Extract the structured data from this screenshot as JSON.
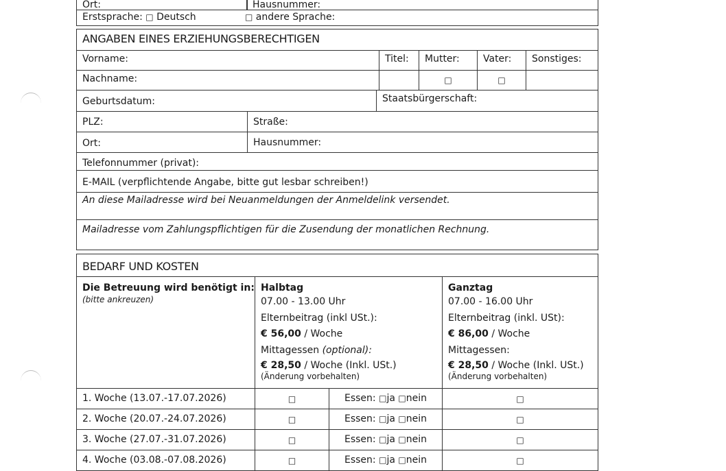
{
  "top_row": {
    "ort": "Ort:",
    "hausnummer": "Hausnummer:"
  },
  "erstsprache": {
    "label": "Erstsprache:",
    "option1": "Deutsch",
    "option2": "andere Sprache:"
  },
  "guardian": {
    "header": "ANGABEN EINES ERZIEHUNGSBERECHTIGEN",
    "vorname": "Vorname:",
    "titel": "Titel:",
    "mutter": "Mutter:",
    "vater": "Vater:",
    "sonstiges": "Sonstiges:",
    "nachname": "Nachname:",
    "geburtsdatum": "Geburtsdatum:",
    "staatsbuergerschaft": "Staatsbürgerschaft:",
    "plz": "PLZ:",
    "strasse": "Straße:",
    "ort": "Ort:",
    "hausnummer": "Hausnummer:",
    "telefon": "Telefonnummer (privat):",
    "email": "E-MAIL (verpflichtende Angabe, bitte gut lesbar schreiben!)",
    "email_note": "An diese Mailadresse wird bei Neuanmeldungen der Anmeldelink versendet.",
    "billing_note": "Mailadresse vom Zahlungspflichtigen für die Zusendung der monatlichen Rechnung."
  },
  "costs": {
    "header": "BEDARF UND KOSTEN",
    "intro": "Die Betreuung wird benötigt in:",
    "intro_note": "(bitte ankreuzen)",
    "halbtag": {
      "title": "Halbtag",
      "hours": "07.00 - 13.00 Uhr",
      "fee_label": "Elternbeitrag (inkl USt.):",
      "fee": "€ 56,00",
      "fee_unit": " / Woche",
      "lunch_label": "Mittagessen ",
      "lunch_opt": "(optional):",
      "lunch": "€ 28,50",
      "lunch_unit": " / Woche (Inkl. USt.)",
      "note": "(Änderung vorbehalten)"
    },
    "ganztag": {
      "title": "Ganztag",
      "hours": "07.00 - 16.00 Uhr",
      "fee_label": "Elternbeitrag (inkl. USt):",
      "fee": "€ 86,00",
      "fee_unit": " / Woche",
      "lunch_label": "Mittagessen:",
      "lunch": "€ 28,50",
      "lunch_unit": " / Woche (Inkl. USt.)",
      "note": "(Änderung vorbehalten)"
    },
    "essen_label": "Essen:",
    "ja": "ja",
    "nein": "nein",
    "weeks": [
      "1. Woche (13.07.-17.07.2026)",
      "2. Woche (20.07.-24.07.2026)",
      "3. Woche (27.07.-31.07.2026)",
      "4. Woche (03.08.-07.08.2026)"
    ]
  },
  "checkbox_glyph": "□"
}
